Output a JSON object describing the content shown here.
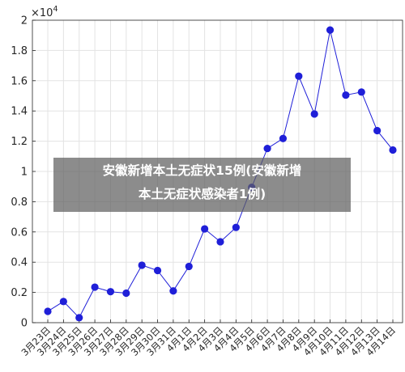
{
  "chart_data": {
    "type": "line",
    "title": "",
    "xlabel": "",
    "ylabel": "",
    "exponent_label": "×10",
    "exponent_power": "4",
    "categories": [
      "3月23日",
      "3月24日",
      "3月25日",
      "3月26日",
      "3月27日",
      "3月28日",
      "3月29日",
      "3月30日",
      "3月31日",
      "4月1日",
      "4月2日",
      "4月3日",
      "4月4日",
      "4月5日",
      "4月6日",
      "4月7日",
      "4月8日",
      "4月9日",
      "4月10日",
      "4月11日",
      "4月12日",
      "4月13日",
      "4月14日"
    ],
    "series": [
      {
        "values": [
          0.075,
          0.14,
          0.033,
          0.235,
          0.205,
          0.195,
          0.38,
          0.345,
          0.21,
          0.372,
          0.62,
          0.535,
          0.63,
          0.895,
          1.152,
          1.218,
          1.63,
          1.38,
          1.935,
          1.505,
          1.525,
          1.27,
          1.142
        ],
        "color": "#1f1fd8"
      }
    ],
    "yticks": [
      "0",
      "0.2",
      "0.4",
      "0.6",
      "0.8",
      "1",
      "1.2",
      "1.4",
      "1.6",
      "1.8",
      "2"
    ],
    "ylim": [
      0,
      2
    ],
    "grid": true
  },
  "overlay": {
    "text": "安徽新增本土无症状15例(安徽新增\n本土无症状感染者1例)"
  }
}
